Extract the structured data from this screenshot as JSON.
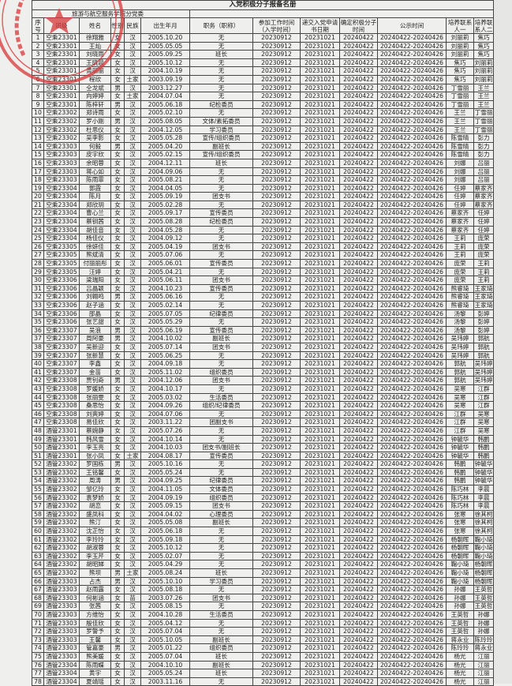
{
  "title": "入党积极分子报备名册",
  "unit": "旅游与航空服务学院分党委",
  "headers": [
    "序号",
    "班级",
    "姓名",
    "性别",
    "民族",
    "出生年月",
    "职务（职称）",
    "参加工作时间（入学时间）",
    "递交入党申请书日期",
    "确定积极分子时间",
    "公示时间",
    "培养联系人一",
    "培养联系人二"
  ],
  "seal_color": "#d8383a",
  "seal_text": "旅游与航空服务学院分党委",
  "rows": [
    [
      "1",
      "空乘23301",
      "徐翔雅",
      "女",
      "汉",
      "2005.10.20",
      "无",
      "20230912",
      "20231021",
      "20240422",
      "20240422-20240426",
      "刘丽莉",
      "焦巧"
    ],
    [
      "2",
      "空乘23301",
      "王灿",
      "女",
      "汉",
      "2005.05.05",
      "无",
      "20230912",
      "20231021",
      "20240422",
      "20240422-20240426",
      "刘丽莉",
      "焦巧"
    ],
    [
      "3",
      "空乘23301",
      "刘晓雨",
      "女",
      "汉",
      "2005.09.25",
      "班长",
      "20230912",
      "20231021",
      "20240422",
      "20240422-20240426",
      "刘丽莉",
      "焦巧"
    ],
    [
      "4",
      "空乘23301",
      "王晓晨",
      "女",
      "汉",
      "2005.10.12",
      "无",
      "20230912",
      "20231021",
      "20240422",
      "20240422-20240426",
      "焦巧",
      "刘丽莉"
    ],
    [
      "5",
      "空乘23301",
      "黄丽丽",
      "女",
      "汉",
      "2004.10.19",
      "无",
      "20230912",
      "20231021",
      "20240422",
      "20240422-20240426",
      "焦巧",
      "刘丽莉"
    ],
    [
      "6",
      "空乘23301",
      "程欣",
      "女",
      "土家",
      "2003.09.19",
      "无",
      "20230912",
      "20231021",
      "20240422",
      "20240422-20240426",
      "焦巧",
      "刘丽莉"
    ],
    [
      "7",
      "空乘23301",
      "仝龙斌",
      "男",
      "汉",
      "2003.12.27",
      "无",
      "20230912",
      "20231021",
      "20240422",
      "20240422-20240426",
      "丁雪丽",
      "王兰"
    ],
    [
      "8",
      "空乘23301",
      "向婷婷",
      "女",
      "土家",
      "2004.07.04",
      "无",
      "20230912",
      "20231021",
      "20240422",
      "20240422-20240426",
      "丁雪丽",
      "王兰"
    ],
    [
      "9",
      "空乘23301",
      "陈梓轩",
      "男",
      "汉",
      "2005.06.18",
      "纪检委员",
      "20230912",
      "20231021",
      "20240422",
      "20240422-20240426",
      "丁雪丽",
      "王兰"
    ],
    [
      "10",
      "空乘23302",
      "郑诗雨",
      "女",
      "汉",
      "2005.02.10",
      "无",
      "20230912",
      "20231021",
      "20240422",
      "20240422-20240426",
      "王兰",
      "丁雪丽"
    ],
    [
      "11",
      "空乘23302",
      "罗小刚",
      "男",
      "汉",
      "2005.08.05",
      "文体/素拓委员",
      "20230912",
      "20231021",
      "20240422",
      "20240422-20240426",
      "王兰",
      "丁雪丽"
    ],
    [
      "12",
      "空乘23302",
      "杜思仪",
      "女",
      "汉",
      "2004.12.05",
      "学习委员",
      "20230912",
      "20231021",
      "20240422",
      "20240422-20240426",
      "王兰",
      "丁雪丽"
    ],
    [
      "13",
      "空乘23302",
      "吴李影",
      "女",
      "汉",
      "2005.05.28",
      "宣传/组织委员",
      "20230912",
      "20231021",
      "20240422",
      "20240422-20240426",
      "陈雪晴",
      "彭力"
    ],
    [
      "14",
      "空乘23303",
      "何毅",
      "男",
      "汉",
      "2005.04.20",
      "副班长",
      "20230912",
      "20231021",
      "20240422",
      "20240422-20240426",
      "陈雪晴",
      "彭力"
    ],
    [
      "15",
      "空乘23303",
      "皮宇欣",
      "女",
      "汉",
      "2005.02.15",
      "宣传/组织委员",
      "20230912",
      "20231021",
      "20240422",
      "20240422-20240426",
      "陈雪晴",
      "彭力"
    ],
    [
      "16",
      "空乘23303",
      "余昭蓉",
      "女",
      "汉",
      "2004.12.11",
      "班长",
      "20230912",
      "20231021",
      "20240422",
      "20240422-20240426",
      "刘娜",
      "吕丽"
    ],
    [
      "17",
      "空乘23303",
      "蒋心如",
      "女",
      "汉",
      "2004.09.06",
      "无",
      "20230912",
      "20231021",
      "20240422",
      "20240422-20240426",
      "刘娜",
      "吕丽"
    ],
    [
      "18",
      "空乘23303",
      "陈雨霏",
      "女",
      "汉",
      "2005.08.21",
      "无",
      "20230912",
      "20231021",
      "20240422",
      "20240422-20240426",
      "刘娜",
      "吕丽"
    ],
    [
      "19",
      "空乘23304",
      "郭霞",
      "女",
      "汉",
      "2004.04.05",
      "无",
      "20230912",
      "20231021",
      "20240422",
      "20240422-20240426",
      "任婷",
      "蔡家齐"
    ],
    [
      "20",
      "空乘23304",
      "陈月",
      "女",
      "汉",
      "2005.09.19",
      "团支书",
      "20230912",
      "20231021",
      "20240422",
      "20240422-20240426",
      "任婷",
      "蔡家齐"
    ],
    [
      "21",
      "空乘23304",
      "郑欣玥",
      "女",
      "汉",
      "2005.02.28",
      "无",
      "20230912",
      "20231021",
      "20240422",
      "20240422-20240426",
      "任婷",
      "蔡家齐"
    ],
    [
      "22",
      "空乘23304",
      "曹心兰",
      "女",
      "汉",
      "2005.09.17",
      "宣传委员",
      "20230912",
      "20231021",
      "20240422",
      "20240422-20240426",
      "蔡家齐",
      "任婷"
    ],
    [
      "23",
      "空乘23304",
      "蔡钥茜",
      "女",
      "汉",
      "2005.08.28",
      "纪检委员",
      "20230912",
      "20231021",
      "20240422",
      "20240422-20240426",
      "蔡家齐",
      "任婷"
    ],
    [
      "24",
      "空乘23304",
      "胡佳音",
      "女",
      "汉",
      "2004.05.28",
      "无",
      "20230912",
      "20231021",
      "20240422",
      "20240422-20240426",
      "蔡家齐",
      "任婷"
    ],
    [
      "25",
      "空乘23304",
      "杨佳仪",
      "女",
      "汉",
      "2004.09.12",
      "无",
      "20230912",
      "20231021",
      "20240422",
      "20240422-20240426",
      "王莉",
      "庞荣"
    ],
    [
      "26",
      "空乘23305",
      "徐妍佳",
      "女",
      "汉",
      "2005.04.19",
      "团支书",
      "20230912",
      "20231021",
      "20240422",
      "20240422-20240426",
      "王莉",
      "庞荣"
    ],
    [
      "27",
      "空乘23305",
      "熊斌清",
      "女",
      "汉",
      "2005.07.06",
      "无",
      "20230912",
      "20231021",
      "20240422",
      "20240422-20240426",
      "王莉",
      "庞荣"
    ],
    [
      "28",
      "空乘23305",
      "付丽丽彤",
      "女",
      "汉",
      "2005.06.01",
      "宣传委员",
      "20230912",
      "20231021",
      "20240422",
      "20240422-20240426",
      "庞荣",
      "王莉"
    ],
    [
      "29",
      "空乘23305",
      "汪婷",
      "女",
      "汉",
      "2005.04.21",
      "无",
      "20230912",
      "20231021",
      "20240422",
      "20240422-20240426",
      "庞荣",
      "王莉"
    ],
    [
      "30",
      "空乘23306",
      "梁瑞阳",
      "女",
      "汉",
      "2005.06.11",
      "团支书",
      "20230912",
      "20231021",
      "20240422",
      "20240422-20240426",
      "庞荣",
      "王莉"
    ],
    [
      "31",
      "空乘23306",
      "吕晶颖",
      "女",
      "汉",
      "2004.10.23",
      "宣传委员",
      "20230912",
      "20231021",
      "20240422",
      "20240422-20240426",
      "熊睿琦",
      "王家琦"
    ],
    [
      "32",
      "空乘23306",
      "刘翱鸣",
      "男",
      "汉",
      "2005.06.16",
      "无",
      "20230912",
      "20231021",
      "20240422",
      "20240422-20240426",
      "熊睿琦",
      "王家琦"
    ],
    [
      "33",
      "空乘23306",
      "赵子涵",
      "女",
      "汉",
      "2005.02.14",
      "无",
      "20230912",
      "20231021",
      "20240422",
      "20240422-20240426",
      "熊睿琦",
      "王家琦"
    ],
    [
      "34",
      "空乘23306",
      "邵晶",
      "女",
      "汉",
      "2005.07.05",
      "纪律委员",
      "20230912",
      "20231021",
      "20240422",
      "20240422-20240426",
      "汤黎",
      "彭婷"
    ],
    [
      "35",
      "空乘23306",
      "张艺甜",
      "女",
      "汉",
      "2005.05.29",
      "无",
      "20230912",
      "20231021",
      "20240422",
      "20240422-20240426",
      "汤黎",
      "彭婷"
    ],
    [
      "36",
      "空乘23307",
      "吴浪",
      "男",
      "汉",
      "2005.06.19",
      "宣传委员",
      "20230912",
      "20231021",
      "20240422",
      "20240422-20240426",
      "汤黎",
      "彭婷"
    ],
    [
      "37",
      "空乘23307",
      "周阿豪",
      "男",
      "汉",
      "2004.10.02",
      "副班长",
      "20230912",
      "20231021",
      "20240422",
      "20240422-20240426",
      "吴玮婷",
      "郭航"
    ],
    [
      "38",
      "空乘23307",
      "吴新迎",
      "女",
      "汉",
      "2005.07.14",
      "团支书",
      "20230912",
      "20231021",
      "20240422",
      "20240422-20240426",
      "吴玮婷",
      "郭航"
    ],
    [
      "39",
      "空乘23307",
      "张新慧",
      "女",
      "汉",
      "2005.06.25",
      "无",
      "20230912",
      "20231021",
      "20240422",
      "20240422-20240426",
      "吴玮婷",
      "郭航"
    ],
    [
      "40",
      "空乘23307",
      "李鑫",
      "女",
      "汉",
      "2004.09.18",
      "无",
      "20230912",
      "20231021",
      "20240422",
      "20240422-20240426",
      "郭航",
      "吴玮婷"
    ],
    [
      "41",
      "空乘23307",
      "金苗",
      "女",
      "汉",
      "2005.11.02",
      "组织委员",
      "20230912",
      "20231021",
      "20240422",
      "20240422-20240426",
      "郭航",
      "吴玮婷"
    ],
    [
      "42",
      "空乘23308",
      "贾钊奇",
      "男",
      "汉",
      "2004.12.06",
      "团支书",
      "20230912",
      "20231021",
      "20240422",
      "20240422-20240426",
      "郭航",
      "吴玮婷"
    ],
    [
      "43",
      "空乘23308",
      "罗媛娇",
      "女",
      "汉",
      "2004.10.17",
      "无",
      "20230912",
      "20231021",
      "20240422",
      "20240422-20240426",
      "吴寒",
      "江群"
    ],
    [
      "44",
      "空乘23308",
      "张丽雯",
      "女",
      "汉",
      "2005.03.02",
      "生活委员",
      "20230912",
      "20231021",
      "20240422",
      "20240422-20240426",
      "吴寒",
      "江群"
    ],
    [
      "45",
      "空乘23308",
      "桑思怡",
      "女",
      "汉",
      "2004.09.26",
      "组织/纪律委员",
      "20230912",
      "20231021",
      "20240422",
      "20240422-20240426",
      "吴寒",
      "江群"
    ],
    [
      "46",
      "空乘23308",
      "刘爽婷",
      "女",
      "汉",
      "2004.07.06",
      "无",
      "20230912",
      "20231021",
      "20240422",
      "20240422-20240426",
      "江群",
      "吴寒"
    ],
    [
      "47",
      "空乘23308",
      "易佳欣",
      "女",
      "汉",
      "2003.11.22",
      "团副支书",
      "20230912",
      "20231021",
      "20240422",
      "20240422-20240426",
      "江群",
      "吴寒"
    ],
    [
      "48",
      "酒管23301",
      "蔡婉静",
      "女",
      "汉",
      "2005.07.26",
      "无",
      "20230912",
      "20231021",
      "20240422",
      "20240422-20240426",
      "江群",
      "吴寒"
    ],
    [
      "49",
      "酒管23301",
      "韩风雪",
      "女",
      "汉",
      "2004.10.14",
      "无",
      "20230912",
      "20231021",
      "20240422",
      "20240422-20240426",
      "钟毓华",
      "韩鹏"
    ],
    [
      "50",
      "酒管23301",
      "李玉亮",
      "女",
      "汉",
      "2004.10.03",
      "团支书/副班长",
      "20230912",
      "20231021",
      "20240422",
      "20240422-20240426",
      "钟毓华",
      "韩鹏"
    ],
    [
      "51",
      "酒管23301",
      "张小凤",
      "女",
      "土家",
      "2004.08.17",
      "宣传委员",
      "20230912",
      "20231021",
      "20240422",
      "20240422-20240426",
      "钟毓华",
      "韩鹏"
    ],
    [
      "52",
      "酒管23302",
      "罗国栋",
      "男",
      "汉",
      "2005.10.16",
      "无",
      "20230912",
      "20231021",
      "20240422",
      "20240422-20240426",
      "韩鹏",
      "钟毓华"
    ],
    [
      "53",
      "酒管23302",
      "王铭馨",
      "女",
      "汉",
      "2005.05.24",
      "无",
      "20230912",
      "20231021",
      "20240422",
      "20240422-20240426",
      "韩鹏",
      "钟毓华"
    ],
    [
      "54",
      "酒管23302",
      "周涛",
      "男",
      "汉",
      "2004.09.25",
      "纪律委员",
      "20230912",
      "20231021",
      "20240422",
      "20240422-20240426",
      "韩鹏",
      "钟毓华"
    ],
    [
      "55",
      "酒管23302",
      "邹亿玲",
      "女",
      "汉",
      "2004.11.05",
      "文体委员",
      "20230912",
      "20231021",
      "20240422",
      "20240422-20240426",
      "陈巧林",
      "李晨"
    ],
    [
      "56",
      "酒管23302",
      "袁梦娇",
      "女",
      "汉",
      "2004.09.19",
      "组织委员",
      "20230912",
      "20231021",
      "20240422",
      "20240422-20240426",
      "陈巧林",
      "李晨"
    ],
    [
      "57",
      "酒管23302",
      "胡恋",
      "女",
      "汉",
      "2005.09.15",
      "团支书",
      "20230912",
      "20231021",
      "20240422",
      "20240422-20240426",
      "陈巧林",
      "李晨"
    ],
    [
      "58",
      "酒管23302",
      "盛凤科",
      "女",
      "汉",
      "2004.04.02",
      "心理委员",
      "20230912",
      "20231021",
      "20240422",
      "20240422-20240426",
      "张寒",
      "徐其柯"
    ],
    [
      "59",
      "酒管23302",
      "熊汀",
      "女",
      "汉",
      "2005.05.08",
      "副班长",
      "20230912",
      "20231021",
      "20240422",
      "20240422-20240426",
      "张寒",
      "徐其柯"
    ],
    [
      "60",
      "酒管23302",
      "沈芷怡",
      "女",
      "汉",
      "2005.06.18",
      "无",
      "20230912",
      "20231021",
      "20240422",
      "20240422-20240426",
      "张寒",
      "徐其柯"
    ],
    [
      "61",
      "酒管23302",
      "李玲玲",
      "女",
      "汉",
      "2005.09.18",
      "无",
      "20230912",
      "20231021",
      "20240422",
      "20240422-20240426",
      "杨朝晖",
      "鞠小琦"
    ],
    [
      "62",
      "酒管23302",
      "胡淑蓉",
      "女",
      "汉",
      "2005.10.12",
      "无",
      "20230912",
      "20231021",
      "20240422",
      "20240422-20240426",
      "杨朝晖",
      "鞠小琦"
    ],
    [
      "63",
      "酒管23302",
      "李玉芹",
      "女",
      "汉",
      "2005.02.07",
      "无",
      "20230912",
      "20231021",
      "20240422",
      "20240422-20240426",
      "杨朝晖",
      "鞠小琦"
    ],
    [
      "64",
      "酒管23302",
      "胡昭娣",
      "女",
      "汉",
      "2005.04.29",
      "无",
      "20230912",
      "20231021",
      "20240422",
      "20240422-20240426",
      "鞠小琦",
      "杨朝晖"
    ],
    [
      "65",
      "酒管23302",
      "熊坝",
      "男",
      "土家",
      "2005.08.24",
      "班长",
      "20230912",
      "20231021",
      "20240422",
      "20240422-20240426",
      "鞠小琦",
      "杨朝晖"
    ],
    [
      "66",
      "酒管23303",
      "占杰",
      "男",
      "汉",
      "2005.10.10",
      "学习委员",
      "20230912",
      "20231021",
      "20240422",
      "20240422-20240426",
      "鞠小琦",
      "杨朝晖"
    ],
    [
      "67",
      "酒管23303",
      "赵雨露",
      "女",
      "汉",
      "2005.08.18",
      "无",
      "20230912",
      "20231021",
      "20240422",
      "20240422-20240426",
      "孙娜",
      "王英哲"
    ],
    [
      "68",
      "酒管23303",
      "何彬涵",
      "女",
      "苗",
      "2003.07.26",
      "团支书",
      "20230912",
      "20231021",
      "20240422",
      "20240422-20240426",
      "孙娜",
      "王英哲"
    ],
    [
      "69",
      "酒管23303",
      "张茜",
      "女",
      "汉",
      "2005.08.15",
      "无",
      "20230912",
      "20231021",
      "20240422",
      "20240422-20240426",
      "孙娜",
      "王英哲"
    ],
    [
      "70",
      "酒管23303",
      "方维怡",
      "女",
      "汉",
      "2004.10.28",
      "生活委员",
      "20230912",
      "20231021",
      "20240422",
      "20240422-20240426",
      "王英哲",
      "孙娜"
    ],
    [
      "71",
      "酒管23303",
      "殷佳欣",
      "女",
      "汉",
      "2005.04.12",
      "无",
      "20230912",
      "20231021",
      "20240422",
      "20240422-20240426",
      "王英哲",
      "孙娜"
    ],
    [
      "72",
      "酒管23303",
      "罗警予",
      "女",
      "汉",
      "2005.07.04",
      "无",
      "20230912",
      "20231021",
      "20240422",
      "20240422-20240426",
      "王英哲",
      "孙娜"
    ],
    [
      "73",
      "酒管23303",
      "王馨",
      "女",
      "汉",
      "2005.10.05",
      "副班长",
      "20230912",
      "20231021",
      "20240422",
      "20240422-20240426",
      "蒋永业",
      "陈玲玲"
    ],
    [
      "74",
      "酒管23303",
      "管嘉豪",
      "男",
      "汉",
      "2005.01.22",
      "组织委员",
      "20230912",
      "20231021",
      "20240422",
      "20240422-20240426",
      "陈玲玲",
      "蒋永业"
    ],
    [
      "75",
      "酒管23303",
      "熊美媛",
      "女",
      "汉",
      "2005.07.04",
      "班长",
      "20230912",
      "20231021",
      "20240422",
      "20240422-20240426",
      "杨光",
      "江丽"
    ],
    [
      "76",
      "酒管23304",
      "陈雨蝶",
      "女",
      "汉",
      "2004.10.10",
      "副班长",
      "20230912",
      "20231021",
      "20240422",
      "20240422-20240426",
      "杨光",
      "江丽"
    ],
    [
      "77",
      "酒管23304",
      "黄宇",
      "女",
      "汉",
      "2005.05.24",
      "班长",
      "20230912",
      "20231021",
      "20240422",
      "20240422-20240426",
      "杨光",
      "江丽"
    ],
    [
      "78",
      "酒管23304",
      "夏靖瑶",
      "女",
      "汉",
      "2003.11.16",
      "无",
      "20230912",
      "20231021",
      "20240422",
      "20240422-20240426",
      "杨光",
      "江丽"
    ]
  ]
}
